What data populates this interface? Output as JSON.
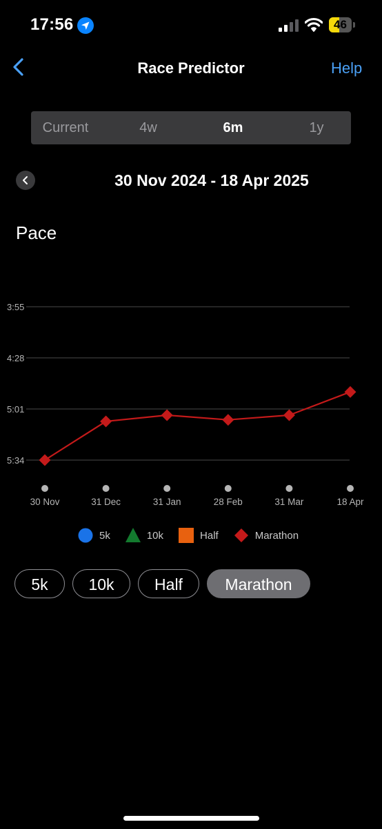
{
  "status": {
    "time": "17:56",
    "battery": "46",
    "battery_level": 0.46
  },
  "nav": {
    "title": "Race Predictor",
    "help": "Help"
  },
  "segments": [
    {
      "label": "Current",
      "active": false
    },
    {
      "label": "4w",
      "active": false
    },
    {
      "label": "6m",
      "active": true
    },
    {
      "label": "1y",
      "active": false
    }
  ],
  "date_range": "30 Nov 2024 - 18 Apr 2025",
  "section_title": "Pace",
  "chart_data": {
    "type": "line",
    "y_ticks": [
      "3:55",
      "4:28",
      "5:01",
      "5:34"
    ],
    "y_tick_seconds": [
      235,
      268,
      301,
      334
    ],
    "y_range_seconds": [
      235,
      334
    ],
    "y_inverted": true,
    "categories": [
      "30 Nov",
      "31 Dec",
      "31 Jan",
      "28 Feb",
      "31 Mar",
      "18 Apr"
    ],
    "series": [
      {
        "name": "Marathon",
        "color": "#c41a1a",
        "marker": "diamond",
        "values_seconds": [
          334,
          309,
          305,
          308,
          305,
          290
        ],
        "values": [
          "5:34",
          "5:09",
          "5:05",
          "5:08",
          "5:05",
          "4:50"
        ]
      }
    ],
    "grid": true
  },
  "legend": [
    {
      "label": "5k",
      "color": "#1a73e8",
      "shape": "circle"
    },
    {
      "label": "10k",
      "color": "#137a2e",
      "shape": "triangle"
    },
    {
      "label": "Half",
      "color": "#e8610f",
      "shape": "square"
    },
    {
      "label": "Marathon",
      "color": "#c41a1a",
      "shape": "diamond"
    }
  ],
  "chips": [
    {
      "label": "5k",
      "active": false
    },
    {
      "label": "10k",
      "active": false
    },
    {
      "label": "Half",
      "active": false
    },
    {
      "label": "Marathon",
      "active": true
    }
  ]
}
